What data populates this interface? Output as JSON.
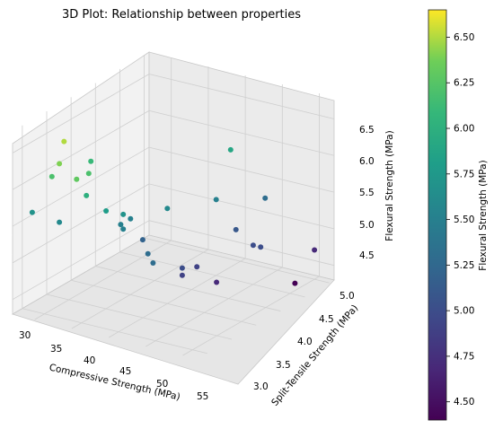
{
  "chart_data": {
    "type": "scatter3d",
    "title": "3D Plot: Relationship between properties",
    "xlabel": "Compressive Strength (MPa)",
    "ylabel": "Split-Tensile Strength (MPa)",
    "zlabel": "Flexural Strength (MPa)",
    "xticks": [
      "30",
      "35",
      "40",
      "45",
      "50",
      "55"
    ],
    "yticks": [
      "3.0",
      "3.5",
      "4.0",
      "4.5",
      "5.0"
    ],
    "zticks": [
      "4.5",
      "5.0",
      "5.5",
      "6.0",
      "6.5"
    ],
    "colorbar_label": "Flexural Strength (MPa)",
    "colorbar_ticks": [
      "4.50",
      "4.75",
      "5.00",
      "5.25",
      "5.50",
      "5.75",
      "6.00",
      "6.25",
      "6.50"
    ],
    "colormap": "viridis",
    "color_range": [
      4.4,
      6.65
    ],
    "xlim": [
      29,
      57
    ],
    "ylim": [
      2.8,
      5.3
    ],
    "zlim": [
      4.3,
      6.8
    ],
    "grid": true,
    "points": [
      {
        "x": 30,
        "y": 3.0,
        "z": 4.7
      },
      {
        "x": 34,
        "y": 3.0,
        "z": 4.4
      },
      {
        "x": 31,
        "y": 3.6,
        "z": 5.3
      },
      {
        "x": 32,
        "y": 4.0,
        "z": 5.9
      },
      {
        "x": 37,
        "y": 3.6,
        "z": 5.1
      },
      {
        "x": 38,
        "y": 3.8,
        "z": 5.5
      },
      {
        "x": 38,
        "y": 3.2,
        "z": 5.0
      },
      {
        "x": 38,
        "y": 3.3,
        "z": 5.0
      },
      {
        "x": 44,
        "y": 3.4,
        "z": 4.7
      },
      {
        "x": 45,
        "y": 3.6,
        "z": 4.9
      },
      {
        "x": 48,
        "y": 3.6,
        "z": 4.9
      },
      {
        "x": 48,
        "y": 3.6,
        "z": 5.0
      },
      {
        "x": 48,
        "y": 4.3,
        "z": 5.5
      },
      {
        "x": 47,
        "y": 4.2,
        "z": 5.2
      },
      {
        "x": 45,
        "y": 4.0,
        "z": 5.6
      },
      {
        "x": 50,
        "y": 4.3,
        "z": 5.5
      },
      {
        "x": 52,
        "y": 3.8,
        "z": 5.3
      },
      {
        "x": 54,
        "y": 3.6,
        "z": 5.3
      },
      {
        "x": 51,
        "y": 4.2,
        "z": 5.5
      },
      {
        "x": 51,
        "y": 4.2,
        "z": 5.7
      },
      {
        "x": 53,
        "y": 4.3,
        "z": 5.8
      },
      {
        "x": 54,
        "y": 4.5,
        "z": 6.0
      },
      {
        "x": 52,
        "y": 4.6,
        "z": 6.2
      },
      {
        "x": 47,
        "y": 4.9,
        "z": 6.1
      },
      {
        "x": 51,
        "y": 5.0,
        "z": 6.5
      },
      {
        "x": 55,
        "y": 4.8,
        "z": 5.6
      },
      {
        "x": 55,
        "y": 4.8,
        "z": 6.4
      },
      {
        "x": 56,
        "y": 4.5,
        "z": 6.3
      },
      {
        "x": 55,
        "y": 4.9,
        "z": 6.2
      },
      {
        "x": 56,
        "y": 5.1,
        "z": 5.7
      }
    ]
  }
}
